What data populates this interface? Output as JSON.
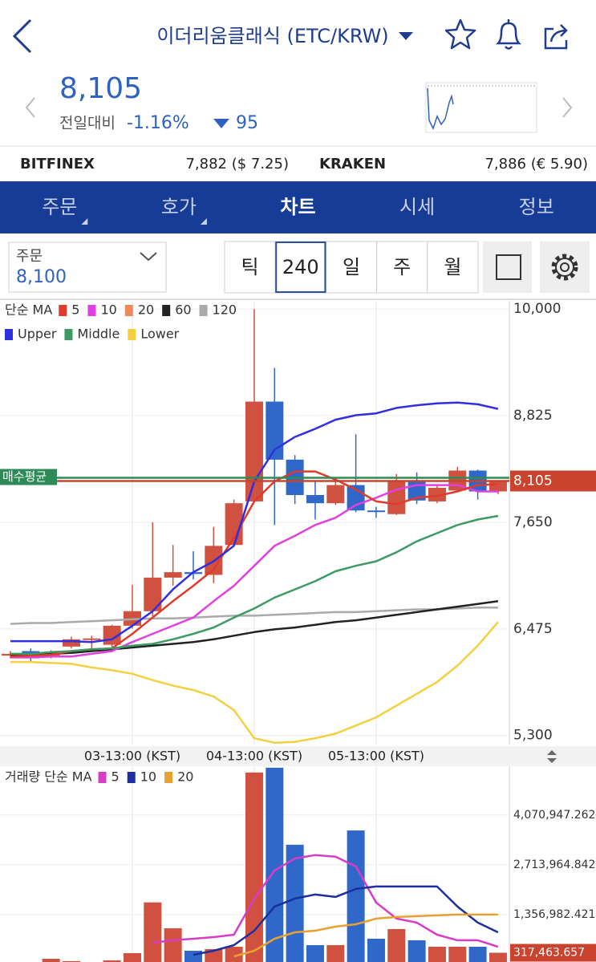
{
  "header": {
    "title": "이더리움클래식 (ETC/KRW)"
  },
  "ticker": {
    "price": "8,105",
    "change_label": "전일대비",
    "change_rate": "-1.16%",
    "change_amount": "95"
  },
  "exchanges": [
    {
      "name": "BITFINEX",
      "price": "7,882 ($ 7.25)"
    },
    {
      "name": "KRAKEN",
      "price": "7,886 (€ 5.90)"
    }
  ],
  "tabs": {
    "items": [
      "주문",
      "호가",
      "차트",
      "시세",
      "정보"
    ],
    "active": 2
  },
  "order": {
    "label": "주문",
    "value": "8,100"
  },
  "intervals": {
    "items": [
      "틱",
      "240",
      "일",
      "주",
      "월"
    ],
    "selected": 1
  },
  "chart_data": [
    {
      "type": "candlestick",
      "legend_title": "단순 MA",
      "categories": [
        null,
        null,
        null,
        null,
        null,
        null,
        "03-13:00 (KST)",
        null,
        null,
        null,
        null,
        null,
        "04-13:00 (KST)",
        null,
        null,
        null,
        null,
        null,
        "05-13:00 (KST)",
        null,
        null,
        null,
        null,
        null,
        null
      ],
      "open": [
        6180,
        6230,
        6170,
        6280,
        6360,
        6300,
        6510,
        6670,
        7040,
        7100,
        7070,
        7400,
        7880,
        8980,
        8340,
        7950,
        7860,
        8060,
        7780,
        7740,
        8100,
        7880,
        8000,
        8220,
        7990
      ],
      "high": [
        6230,
        6260,
        6240,
        6390,
        6400,
        6520,
        6960,
        7650,
        7400,
        7330,
        7600,
        7900,
        10000,
        9350,
        8390,
        8100,
        8100,
        8620,
        7820,
        8180,
        8200,
        8060,
        8260,
        8230,
        8110
      ],
      "low": [
        6150,
        6120,
        6150,
        6260,
        6250,
        6250,
        6480,
        6600,
        6950,
        7020,
        6980,
        7390,
        7880,
        7620,
        7850,
        7680,
        7840,
        7760,
        7700,
        7730,
        7850,
        7860,
        7990,
        7900,
        7960
      ],
      "close": [
        6200,
        6150,
        6220,
        6360,
        6370,
        6510,
        6670,
        7040,
        7100,
        7080,
        7390,
        7860,
        8980,
        8340,
        7950,
        7860,
        8060,
        7780,
        7770,
        8100,
        7890,
        8030,
        8220,
        7990,
        8100
      ],
      "up_color": "#d0513f",
      "down_color": "#2f68c9",
      "series": [
        {
          "name": "5",
          "color": "#e03a2a",
          "values": [
            6170,
            6180,
            6190,
            6230,
            6250,
            6260,
            6420,
            6600,
            6780,
            6950,
            7130,
            7480,
            7880,
            8100,
            8210,
            8210,
            8120,
            8010,
            7880,
            7850,
            7920,
            7940,
            7990,
            8060,
            8070
          ]
        },
        {
          "name": "10",
          "color": "#e040e0",
          "values": [
            6160,
            6160,
            6170,
            6170,
            6200,
            6230,
            6330,
            6420,
            6510,
            6600,
            6780,
            6950,
            7170,
            7390,
            7500,
            7620,
            7700,
            7840,
            7920,
            8010,
            8060,
            8060,
            8060,
            7990,
            7990
          ]
        },
        {
          "name": "20",
          "color": "#f0895a"
        },
        {
          "name": "60",
          "color": "#222222",
          "values": [
            6180,
            6190,
            6200,
            6210,
            6230,
            6250,
            6270,
            6290,
            6310,
            6330,
            6360,
            6400,
            6440,
            6470,
            6490,
            6520,
            6550,
            6570,
            6600,
            6630,
            6660,
            6690,
            6720,
            6750,
            6780
          ]
        },
        {
          "name": "120",
          "color": "#aaaaaa",
          "values": [
            6530,
            6540,
            6540,
            6550,
            6560,
            6570,
            6580,
            6590,
            6590,
            6600,
            6610,
            6620,
            6620,
            6630,
            6640,
            6650,
            6660,
            6660,
            6670,
            6680,
            6690,
            6690,
            6700,
            6710,
            6710
          ]
        }
      ],
      "bollinger": [
        {
          "name": "Upper",
          "color": "#2f2fe0",
          "values": [
            6340,
            6340,
            6340,
            6340,
            6330,
            6360,
            6510,
            6670,
            6910,
            7100,
            7220,
            7390,
            8100,
            8450,
            8590,
            8680,
            8780,
            8830,
            8850,
            8910,
            8940,
            8960,
            8970,
            8950,
            8900
          ]
        },
        {
          "name": "Middle",
          "color": "#3c9a63",
          "values": [
            6200,
            6200,
            6220,
            6230,
            6250,
            6260,
            6290,
            6310,
            6360,
            6420,
            6490,
            6600,
            6700,
            6820,
            6910,
            7000,
            7110,
            7170,
            7220,
            7320,
            7440,
            7530,
            7620,
            7680,
            7720
          ]
        },
        {
          "name": "Lower",
          "color": "#f4d040",
          "values": [
            6110,
            6110,
            6100,
            6090,
            6050,
            6020,
            5980,
            5910,
            5850,
            5800,
            5730,
            5580,
            5270,
            5220,
            5230,
            5270,
            5320,
            5410,
            5500,
            5630,
            5760,
            5890,
            6070,
            6290,
            6550
          ]
        }
      ],
      "ylim": [
        5200,
        10090
      ],
      "yticks": [
        {
          "value": 10000,
          "label": "10,000"
        },
        {
          "value": 8825,
          "label": "8,825"
        },
        {
          "value": 7650,
          "label": "7,650"
        },
        {
          "value": 6475,
          "label": "6,475"
        },
        {
          "value": 5300,
          "label": "5,300"
        }
      ],
      "current_price": {
        "value": 8105,
        "label": "8,105",
        "color": "#c9432f"
      },
      "average_buy": {
        "value": 8140,
        "label": "매수평균",
        "color": "#2e8b57"
      },
      "grid": true
    },
    {
      "type": "bar",
      "legend_title": "거래량 단순 MA",
      "values": [
        50000,
        30000,
        153000,
        90000,
        40000,
        110000,
        306000,
        1690000,
        985000,
        372000,
        416000,
        481000,
        5230000,
        5360000,
        3260000,
        525000,
        525000,
        3650000,
        700000,
        963000,
        657000,
        481000,
        481000,
        481000,
        317463.657
      ],
      "value_labels": [
        null,
        null,
        null,
        null,
        null,
        null,
        null,
        null,
        null,
        null,
        null,
        null,
        null,
        null,
        null,
        null,
        null,
        null,
        null,
        null,
        null,
        null,
        null,
        null,
        "317,463.657"
      ],
      "series": [
        {
          "name": "5",
          "color": "#d63cc8",
          "values": [
            null,
            null,
            null,
            null,
            null,
            null,
            null,
            591000,
            657000,
            700000,
            744000,
            810000,
            1795000,
            2561000,
            2889000,
            2977000,
            2933000,
            2670000,
            1685000,
            1248000,
            1138000,
            810000,
            657000,
            657000,
            482000
          ]
        },
        {
          "name": "10",
          "color": "#1b2fa0",
          "values": [
            null,
            null,
            null,
            null,
            null,
            null,
            null,
            null,
            null,
            263000,
            372000,
            525000,
            919000,
            1576000,
            1795000,
            1904000,
            1839000,
            2057000,
            2123000,
            2123000,
            2123000,
            2123000,
            1576000,
            1138000,
            875000
          ]
        },
        {
          "name": "20",
          "color": "#e8a030",
          "values": [
            null,
            null,
            null,
            null,
            null,
            null,
            null,
            null,
            null,
            null,
            null,
            219000,
            372000,
            700000,
            875000,
            919000,
            1029000,
            1094000,
            1248000,
            1291000,
            1313000,
            1335000,
            1357000,
            1357000,
            1357000
          ]
        }
      ],
      "ylim": [
        0,
        5400000
      ],
      "yticks": [
        {
          "value": 4070947.262,
          "label": "4,070,947.262"
        },
        {
          "value": 2713964.842,
          "label": "2,713,964.842"
        },
        {
          "value": 1356982.421,
          "label": "1,356,982.421"
        }
      ],
      "grid": true
    }
  ]
}
